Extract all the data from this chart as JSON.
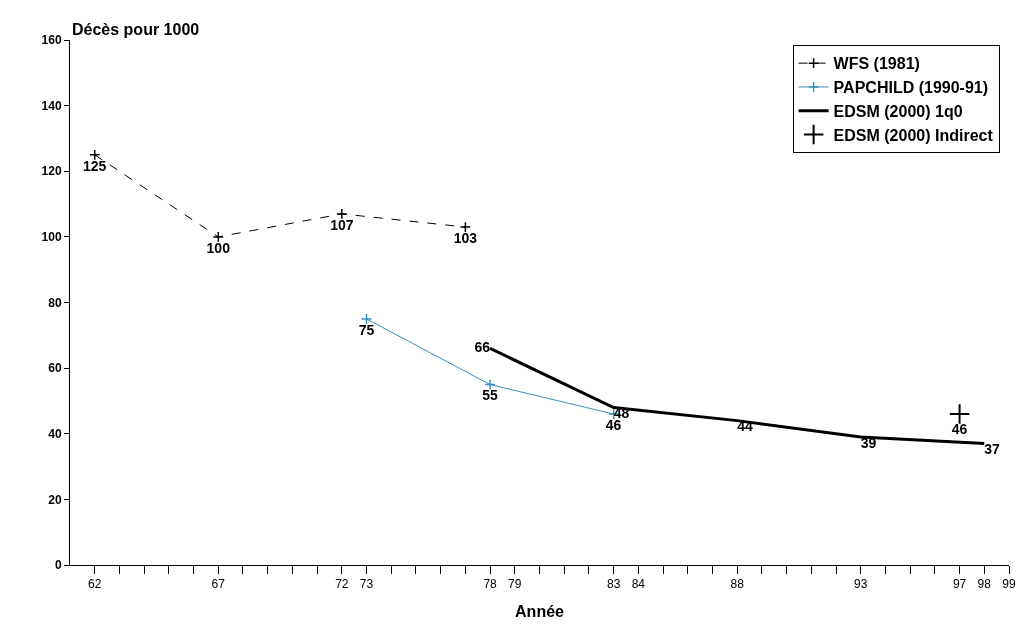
{
  "chart_data": {
    "type": "line",
    "ylabel": "Décès pour 1000",
    "xlabel": "Année",
    "xlim": [
      61,
      99
    ],
    "ylim": [
      0,
      160
    ],
    "yticks": [
      0,
      20,
      40,
      60,
      80,
      100,
      120,
      140,
      160
    ],
    "xticks": [
      62,
      {
        "value": 63,
        "label": null
      },
      {
        "value": 64,
        "label": null
      },
      {
        "value": 65,
        "label": null
      },
      {
        "value": 66,
        "label": null
      },
      67,
      {
        "value": 68,
        "label": null
      },
      {
        "value": 69,
        "label": null
      },
      {
        "value": 70,
        "label": null
      },
      {
        "value": 71,
        "label": null
      },
      72,
      73,
      {
        "value": 74,
        "label": null
      },
      {
        "value": 75,
        "label": null
      },
      {
        "value": 76,
        "label": null
      },
      {
        "value": 77,
        "label": null
      },
      78,
      79,
      {
        "value": 80,
        "label": null
      },
      {
        "value": 81,
        "label": null
      },
      {
        "value": 82,
        "label": null
      },
      83,
      84,
      {
        "value": 85,
        "label": null
      },
      {
        "value": 86,
        "label": null
      },
      {
        "value": 87,
        "label": null
      },
      88,
      {
        "value": 89,
        "label": null
      },
      {
        "value": 90,
        "label": null
      },
      {
        "value": 91,
        "label": null
      },
      {
        "value": 92,
        "label": null
      },
      93,
      {
        "value": 94,
        "label": null
      },
      {
        "value": 95,
        "label": null
      },
      {
        "value": 96,
        "label": null
      },
      97,
      98,
      99
    ],
    "legend": "top right",
    "data_labels": true,
    "series": [
      {
        "name": "WFS (1981)",
        "color": "#000000",
        "x": [
          62,
          67,
          72,
          77
        ],
        "values": [
          125,
          100,
          107,
          103
        ],
        "line_style": "dashed",
        "marker": "cross"
      },
      {
        "name": "PAPCHILD (1990-91)",
        "color": "#3a8fc0",
        "x": [
          73,
          78,
          83
        ],
        "values": [
          75,
          55,
          46
        ],
        "line_style": "solid",
        "marker": "cross"
      },
      {
        "name": "EDSM (2000) 1q0",
        "color": "#000000",
        "x": [
          78,
          83,
          88,
          93,
          98
        ],
        "values": [
          66,
          48,
          44,
          39,
          37
        ],
        "line_style": "solid",
        "marker": "none"
      },
      {
        "name": "EDSM (2000) Indirect",
        "type": "scatter",
        "color": "#000000",
        "x": [
          97
        ],
        "values": [
          46
        ],
        "marker": "cross"
      }
    ]
  }
}
